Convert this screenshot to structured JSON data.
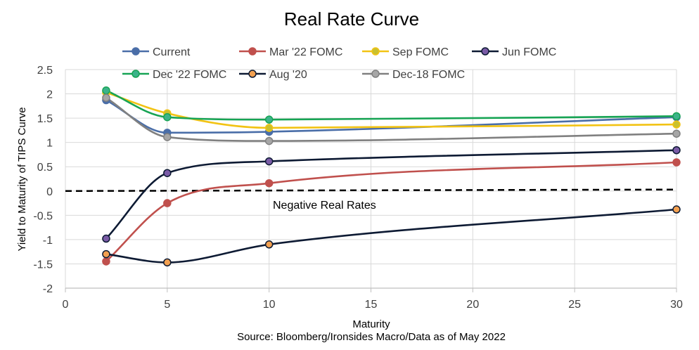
{
  "chart_data": {
    "type": "line",
    "title": "Real Rate Curve",
    "xlabel": "Maturity",
    "ylabel": "Yield to Maturity of TIPS Curve",
    "source": "Source: Bloomberg/Ironsides Macro/Data as of May 2022",
    "annotation": "Negative Real Rates",
    "xlim": [
      0,
      30
    ],
    "ylim": [
      -2,
      2.5
    ],
    "x_ticks": [
      0,
      5,
      10,
      15,
      20,
      25,
      30
    ],
    "y_ticks": [
      -2,
      -1.5,
      -1,
      -0.5,
      0,
      0.5,
      1,
      1.5,
      2,
      2.5
    ],
    "grid": true,
    "legend_position": "top",
    "zero_line": {
      "style": "dashed",
      "x": [
        0,
        30
      ],
      "y": [
        0,
        0.03
      ]
    },
    "series": [
      {
        "name": "Current",
        "color": "#4a6ea8",
        "marker_fill": "#4a6ea8",
        "x": [
          2,
          5,
          10,
          30
        ],
        "y": [
          1.87,
          1.2,
          1.22,
          1.52
        ]
      },
      {
        "name": "Mar '22 FOMC",
        "color": "#c0504d",
        "marker_fill": "#c0504d",
        "x": [
          2,
          5,
          10,
          30
        ],
        "y": [
          -1.45,
          -0.25,
          0.16,
          0.59
        ]
      },
      {
        "name": "Sep FOMC",
        "color": "#f2c314",
        "marker_fill": "#c9c12f",
        "x": [
          2,
          5,
          10,
          30
        ],
        "y": [
          2.03,
          1.6,
          1.3,
          1.37
        ]
      },
      {
        "name": "Jun FOMC",
        "color": "#0d1a33",
        "marker_fill": "#7a5ba6",
        "x": [
          2,
          5,
          10,
          30
        ],
        "y": [
          -0.98,
          0.37,
          0.61,
          0.84
        ]
      },
      {
        "name": "Dec '22 FOMC",
        "color": "#17a454",
        "marker_fill": "#3cb38a",
        "x": [
          2,
          5,
          10,
          30
        ],
        "y": [
          2.07,
          1.52,
          1.47,
          1.54
        ]
      },
      {
        "name": "Aug '20",
        "color": "#0d1a33",
        "marker_fill": "#f2a050",
        "x": [
          2,
          5,
          10,
          30
        ],
        "y": [
          -1.3,
          -1.47,
          -1.1,
          -0.38
        ]
      },
      {
        "name": "Dec-18 FOMC",
        "color": "#808080",
        "marker_fill": "#a6a6a6",
        "x": [
          2,
          5,
          10,
          30
        ],
        "y": [
          1.92,
          1.11,
          1.03,
          1.18
        ]
      }
    ]
  }
}
